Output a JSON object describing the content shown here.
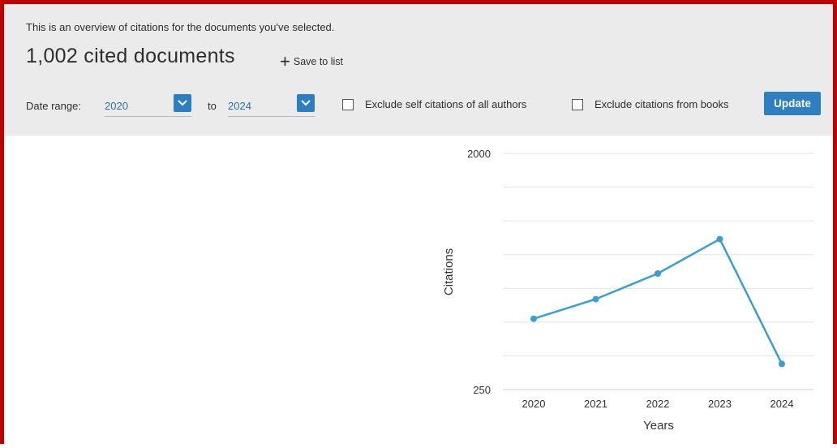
{
  "header": {
    "intro": "This is an overview of citations for the documents you've selected.",
    "doc_count": "1,002 cited documents",
    "save_label": "Save to list"
  },
  "filters": {
    "date_range_label": "Date range:",
    "from_year": "2020",
    "to_label": "to",
    "to_year": "2024",
    "exclude_self_label": "Exclude self citations of all authors",
    "exclude_books_label": "Exclude citations from books",
    "update_label": "Update"
  },
  "colors": {
    "accent": "#2d7fc1",
    "line": "#3a9fd0",
    "frame": "#c00000"
  },
  "chart_data": {
    "type": "line",
    "xlabel": "Years",
    "ylabel": "Citations",
    "ylim": [
      250,
      2000
    ],
    "y_ticks_labeled": [
      "2000",
      "250"
    ],
    "categories": [
      "2020",
      "2021",
      "2022",
      "2023",
      "2024"
    ],
    "series": [
      {
        "values": [
          775,
          920,
          1110,
          1365,
          440
        ]
      }
    ],
    "grid": true
  }
}
